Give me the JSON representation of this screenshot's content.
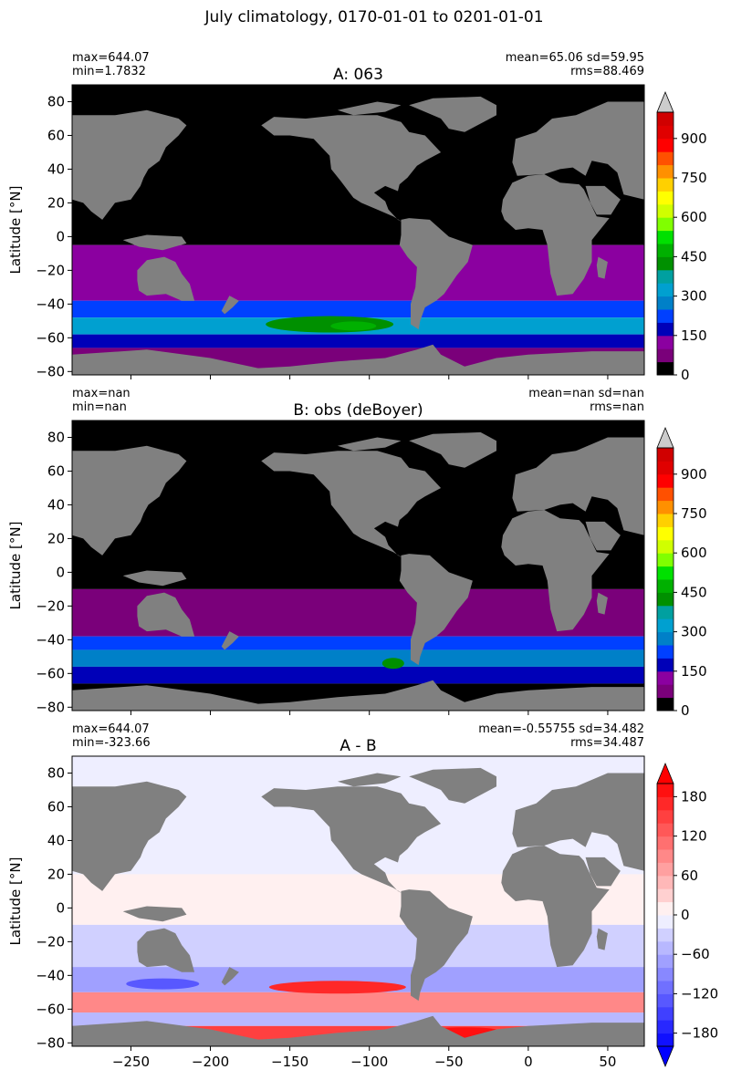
{
  "figure": {
    "suptitle": "July climatology, 0170-01-01 to 0201-01-01"
  },
  "colors": {
    "land": "#808080",
    "frame": "#000000",
    "over_arrow_abs": "#cccccc",
    "over_arrow_diff": "#ff0000",
    "under_arrow_diff": "#0000ff"
  },
  "chart_data": [
    {
      "type": "heatmap",
      "title": "A: 063",
      "stats": {
        "max": "max=644.07",
        "min": "min=1.7832",
        "mean_sd": "mean=65.06 sd=59.95",
        "rms": "rms=88.469"
      },
      "ylabel": "Latitude [°N]",
      "xlabel": "",
      "xlim": [
        -287,
        73
      ],
      "ylim": [
        -82,
        90
      ],
      "yticks": [
        80,
        60,
        40,
        20,
        0,
        -20,
        -40,
        -60,
        -80
      ],
      "yticklabels": [
        "80",
        "60",
        "40",
        "20",
        "0",
        "−20",
        "−40",
        "−60",
        "−80"
      ],
      "xticks": [
        -250,
        -200,
        -150,
        -100,
        -50,
        0,
        50
      ],
      "xticklabels": [],
      "colorbar": {
        "extend": "max",
        "levels": [
          0,
          50,
          100,
          150,
          200,
          250,
          300,
          350,
          400,
          450,
          500,
          550,
          600,
          650,
          700,
          750,
          800,
          850,
          900,
          950,
          1000
        ],
        "colors": [
          "#000000",
          "#7a007a",
          "#8b00a0",
          "#0000b8",
          "#0040ff",
          "#0080c8",
          "#00a0d0",
          "#00a0a0",
          "#009000",
          "#00b000",
          "#00e000",
          "#80ff00",
          "#d0ff00",
          "#ffff00",
          "#ffd000",
          "#ff9000",
          "#ff5000",
          "#ff0000",
          "#e00000",
          "#d00000"
        ],
        "ticks": [
          0,
          150,
          300,
          450,
          600,
          750,
          900
        ],
        "ticklabels": [
          "0",
          "150",
          "300",
          "450",
          "600",
          "750",
          "900"
        ]
      }
    },
    {
      "type": "heatmap",
      "title": "B: obs (deBoyer)",
      "stats": {
        "max": "max=nan",
        "min": "min=nan",
        "mean_sd": "mean=nan sd=nan",
        "rms": "rms=nan"
      },
      "ylabel": "Latitude [°N]",
      "xlabel": "",
      "xlim": [
        -287,
        73
      ],
      "ylim": [
        -82,
        90
      ],
      "yticks": [
        80,
        60,
        40,
        20,
        0,
        -20,
        -40,
        -60,
        -80
      ],
      "yticklabels": [
        "80",
        "60",
        "40",
        "20",
        "0",
        "−20",
        "−40",
        "−60",
        "−80"
      ],
      "xticks": [
        -250,
        -200,
        -150,
        -100,
        -50,
        0,
        50
      ],
      "xticklabels": [],
      "colorbar": {
        "extend": "max",
        "levels": [
          0,
          50,
          100,
          150,
          200,
          250,
          300,
          350,
          400,
          450,
          500,
          550,
          600,
          650,
          700,
          750,
          800,
          850,
          900,
          950,
          1000
        ],
        "colors": [
          "#000000",
          "#7a007a",
          "#8b00a0",
          "#0000b8",
          "#0040ff",
          "#0080c8",
          "#00a0d0",
          "#00a0a0",
          "#009000",
          "#00b000",
          "#00e000",
          "#80ff00",
          "#d0ff00",
          "#ffff00",
          "#ffd000",
          "#ff9000",
          "#ff5000",
          "#ff0000",
          "#e00000",
          "#d00000"
        ],
        "ticks": [
          0,
          150,
          300,
          450,
          600,
          750,
          900
        ],
        "ticklabels": [
          "0",
          "150",
          "300",
          "450",
          "600",
          "750",
          "900"
        ]
      }
    },
    {
      "type": "heatmap",
      "title": "A - B",
      "stats": {
        "max": "max=644.07",
        "min": "min=-323.66",
        "mean_sd": "mean=-0.55755 sd=34.482",
        "rms": "rms=34.487"
      },
      "ylabel": "Latitude [°N]",
      "xlabel": "",
      "xlim": [
        -287,
        73
      ],
      "ylim": [
        -82,
        90
      ],
      "yticks": [
        80,
        60,
        40,
        20,
        0,
        -20,
        -40,
        -60,
        -80
      ],
      "yticklabels": [
        "80",
        "60",
        "40",
        "20",
        "0",
        "−20",
        "−40",
        "−60",
        "−80"
      ],
      "xticks": [
        -250,
        -200,
        -150,
        -100,
        -50,
        0,
        50
      ],
      "xticklabels": [
        "−250",
        "−200",
        "−150",
        "−100",
        "−50",
        "0",
        "50"
      ],
      "colorbar": {
        "extend": "both",
        "levels": [
          -200,
          -180,
          -160,
          -140,
          -120,
          -100,
          -80,
          -60,
          -40,
          -20,
          0,
          20,
          40,
          60,
          80,
          100,
          120,
          140,
          160,
          180,
          200
        ],
        "colors": [
          "#1010ff",
          "#2828ff",
          "#4040ff",
          "#5858ff",
          "#7070ff",
          "#8888ff",
          "#a0a0ff",
          "#b8b8ff",
          "#d0d0ff",
          "#eeeeff",
          "#fff0f0",
          "#ffd0d0",
          "#ffb8b8",
          "#ffa0a0",
          "#ff8888",
          "#ff7070",
          "#ff5858",
          "#ff4040",
          "#ff2828",
          "#ff1010"
        ],
        "ticks": [
          -180,
          -120,
          -60,
          0,
          60,
          120,
          180
        ],
        "ticklabels": [
          "−180",
          "−120",
          "−60",
          "0",
          "60",
          "120",
          "180"
        ]
      }
    }
  ]
}
